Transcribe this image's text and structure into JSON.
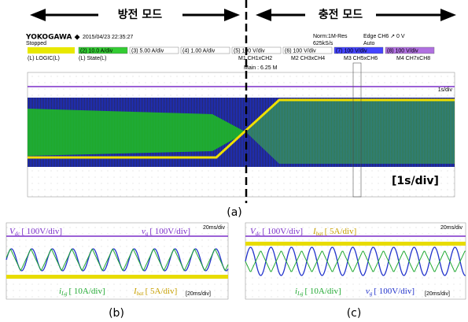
{
  "arrows": {
    "left_mode": "방전 모드",
    "right_mode": "충전 모드"
  },
  "scope": {
    "brand": "YOKOGAWA ◆",
    "timestamp": "2015/04/23 22:35:27",
    "status": "Stopped",
    "mode": "Norm:1M-Res",
    "rate": "625kS/s",
    "trigger": "Edge CH6 ↗ 0 V",
    "trigger_mode": "Auto",
    "channels": [
      "(2) 10.0 A/div",
      "(3) 5.00 A/div",
      "(4) 1.00 A/div",
      "(5) 100 V/div",
      "(6) 100 V/div",
      "(7) 100 V/div",
      "(8) 100 V/div"
    ],
    "logic": [
      "(L) LOGIC(L)",
      "(L) State(L)"
    ],
    "math": [
      "M1 CH1xCH2",
      "M2 CH3xCH4",
      "M3 CH5xCH6",
      "M4 CH7xCH8"
    ],
    "main": "Main : 6.25 M",
    "timebase": "1s/div",
    "timebase_note": "[1s/div]"
  },
  "captions": {
    "a": "(a)",
    "b": "(b)",
    "c": "(c)"
  },
  "panel_b": {
    "scope_timebase": "20ms/div",
    "timebase_note": "[20ms/div]",
    "labels": [
      {
        "symbol": "V",
        "sub": "dc",
        "scale": "[ 100V/div]"
      },
      {
        "symbol": "v",
        "sub": "g",
        "scale": "[ 100V/div]"
      },
      {
        "symbol": "i",
        "sub": "Lg",
        "scale": "[ 10A/div]"
      },
      {
        "symbol": "I",
        "sub": "bat",
        "scale": "[ 5A/div]"
      }
    ]
  },
  "panel_c": {
    "scope_timebase": "20ms/div",
    "timebase_note": "[20ms/div]",
    "labels": [
      {
        "symbol": "V",
        "sub": "dc",
        "scale": "[ 100V/div]"
      },
      {
        "symbol": "I",
        "sub": "bat",
        "scale": "[ 5A/div]"
      },
      {
        "symbol": "i",
        "sub": "Lg",
        "scale": "[ 10A/div]"
      },
      {
        "symbol": "v",
        "sub": "g",
        "scale": "[ 100V/div]"
      }
    ]
  }
}
